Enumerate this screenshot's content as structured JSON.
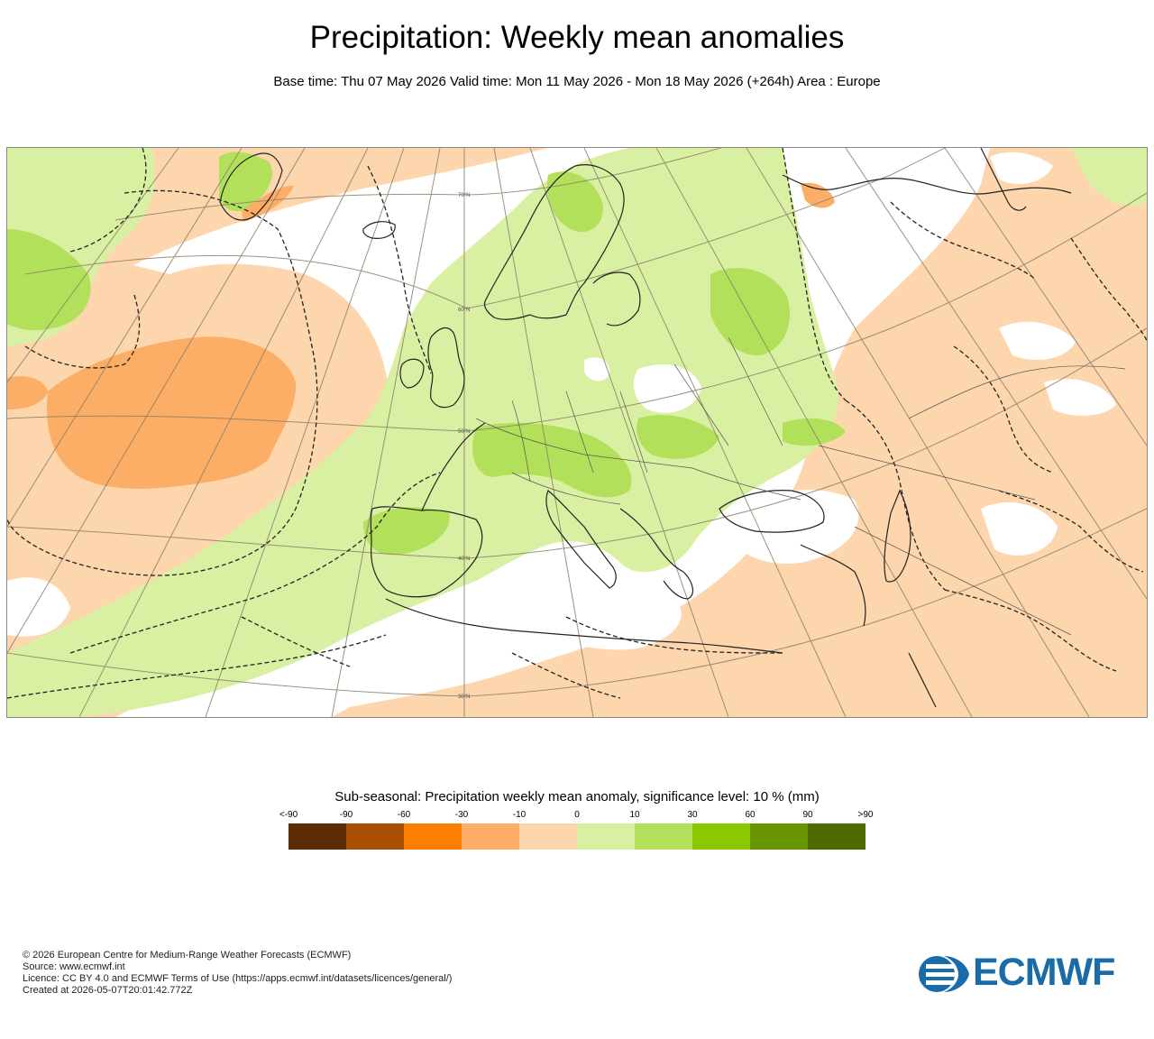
{
  "header": {
    "title": "Precipitation: Weekly mean anomalies",
    "subtitle": "Base time: Thu 07 May 2026 Valid time: Mon 11 May 2026 - Mon 18 May 2026 (+264h) Area : Europe"
  },
  "map": {
    "lat_labels": [
      "70°N",
      "60°N",
      "50°N",
      "40°N",
      "30°N"
    ],
    "colors": {
      "ocean_neg_light": "#fdd6ad",
      "neg_mid": "#fdae66",
      "neutral": "#ffffff",
      "pos_light": "#d9f0a3",
      "pos_mid": "#b3e05a",
      "coast": "#222222",
      "grid": "#8c7f6a"
    }
  },
  "legend": {
    "title": "Sub-seasonal: Precipitation weekly mean anomaly, significance level: 10 % (mm)",
    "labels": [
      "<-90",
      "-90",
      "-60",
      "-30",
      "-10",
      "0",
      "10",
      "30",
      "60",
      "90",
      ">90"
    ],
    "colors": [
      "#5c2c06",
      "#a94f04",
      "#fd7e00",
      "#fdae66",
      "#fdd6ad",
      "#d9f0a3",
      "#b3e05a",
      "#8bc800",
      "#669500",
      "#4d6b00"
    ]
  },
  "footer": {
    "copyright": "© 2026 European Centre for Medium-Range Weather Forecasts (ECMWF)",
    "source": "Source: www.ecmwf.int",
    "licence": "Licence: CC BY 4.0 and ECMWF Terms of Use (https://apps.ecmwf.int/datasets/licences/general/)",
    "created": "Created at 2026-05-07T20:01:42.772Z"
  },
  "logo": {
    "text": "ECMWF",
    "color": "#1a6ca8"
  }
}
